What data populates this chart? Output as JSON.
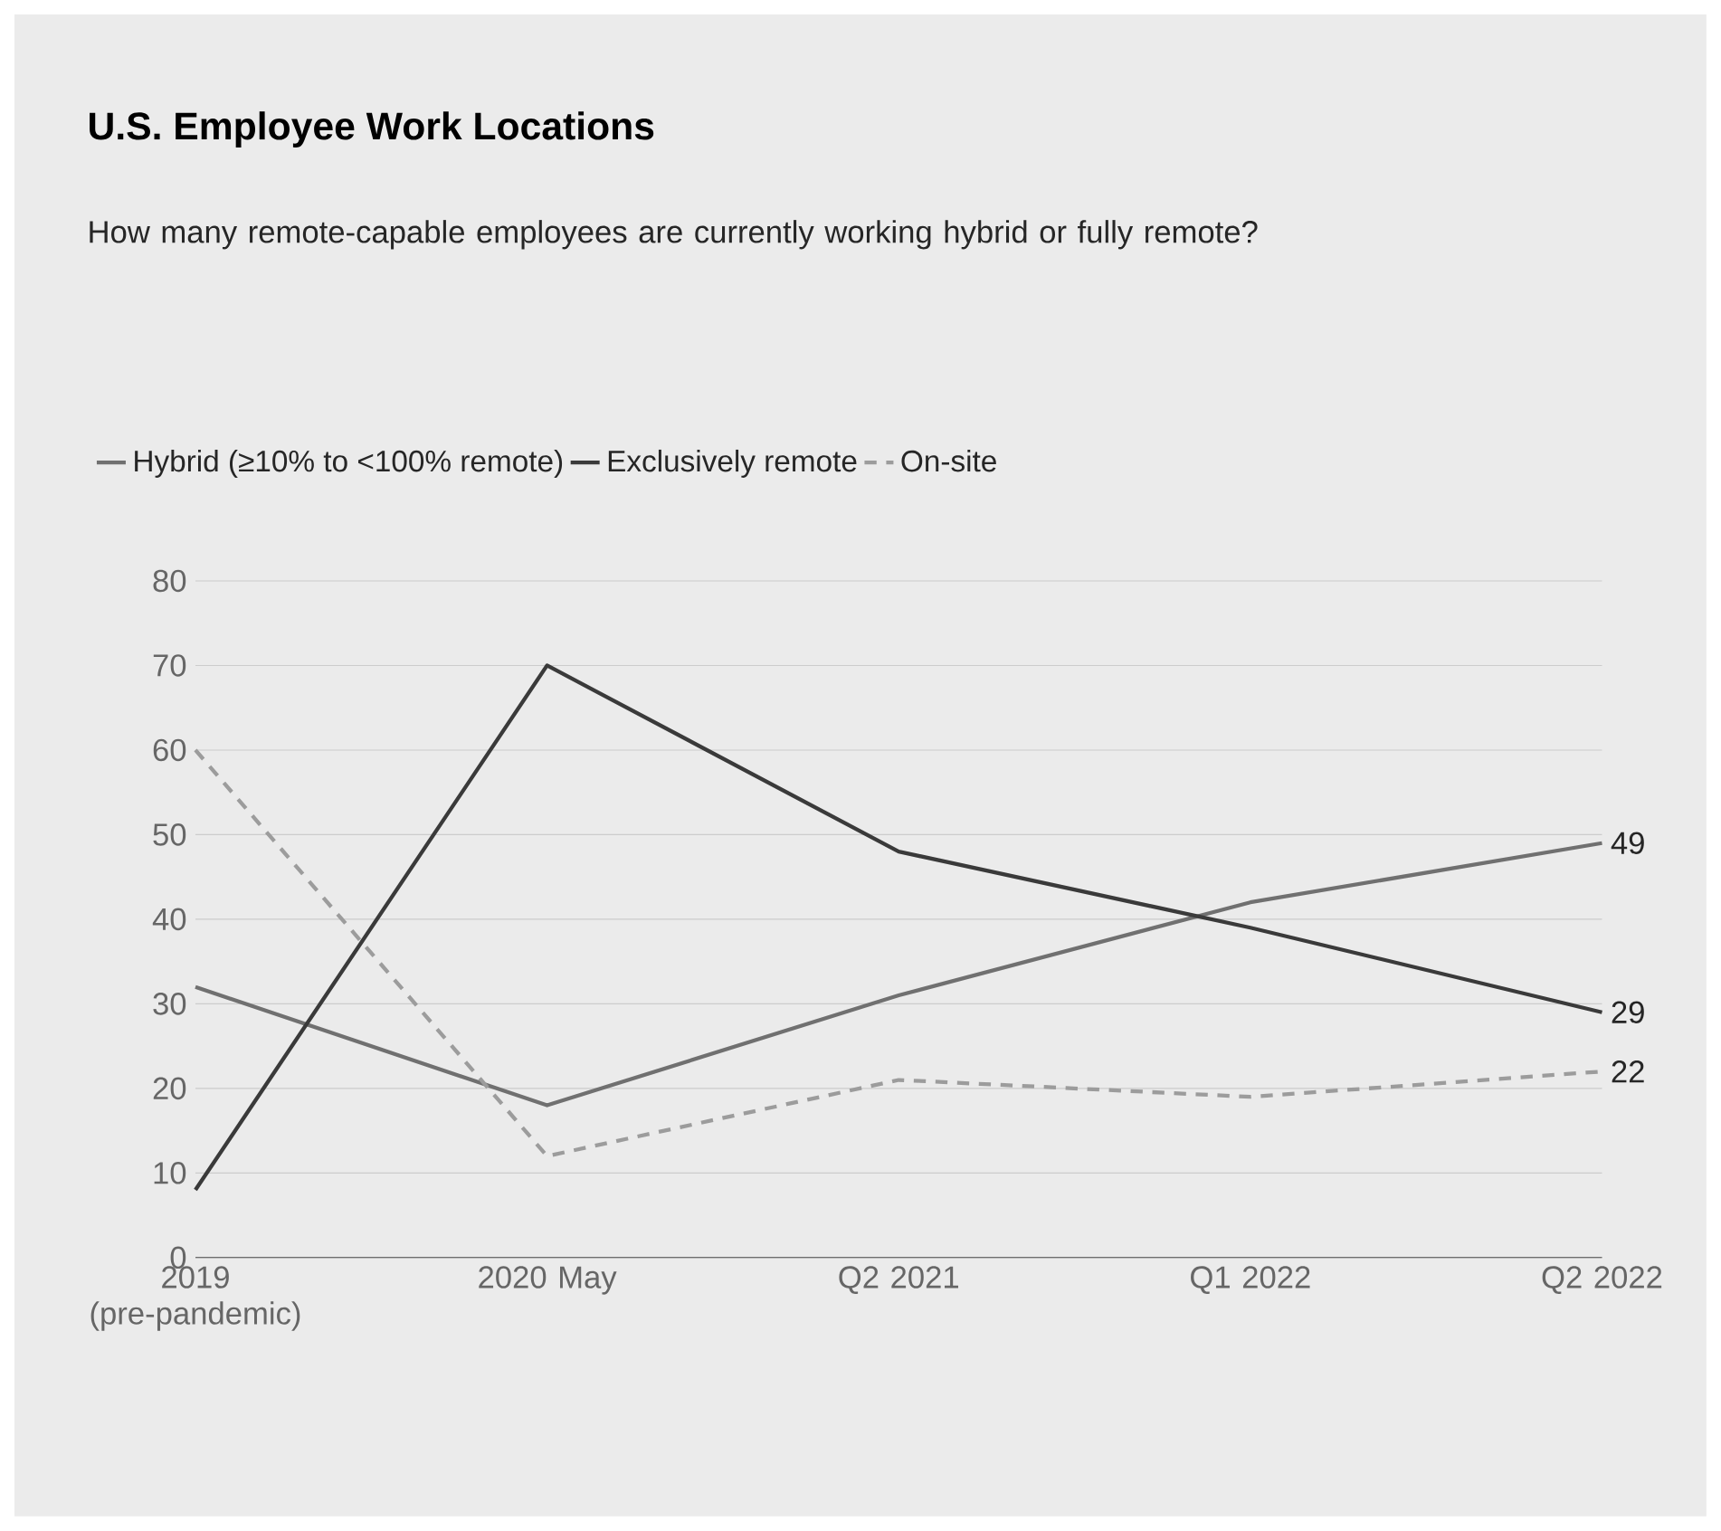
{
  "chart_data": {
    "type": "line",
    "title": "U.S. Employee Work Locations",
    "subtitle": "How many remote-capable employees are currently working hybrid or fully remote?",
    "categories": [
      "2019 (pre-pandemic)",
      "2020 May",
      "Q2 2021",
      "Q1 2022",
      "Q2 2022"
    ],
    "series": [
      {
        "name": "Hybrid (≥10% to <100% remote)",
        "color": "#707070",
        "line_style": "solid",
        "values": [
          32,
          18,
          31,
          42,
          49
        ],
        "value_labels": [
          null,
          null,
          null,
          null,
          "49"
        ]
      },
      {
        "name": "Exclusively remote",
        "color": "#3a3a3a",
        "line_style": "solid",
        "values": [
          8,
          70,
          48,
          39,
          29
        ],
        "value_labels": [
          null,
          null,
          null,
          null,
          "29"
        ]
      },
      {
        "name": "On-site",
        "color": "#9c9c9c",
        "line_style": "dashed",
        "values": [
          60,
          12,
          21,
          19,
          22
        ],
        "value_labels": [
          null,
          null,
          null,
          null,
          "22"
        ]
      }
    ],
    "ylim": [
      0,
      80
    ],
    "yticks": [
      0,
      10,
      20,
      30,
      40,
      50,
      60,
      70,
      80
    ],
    "grid": "y",
    "legend": "top left",
    "marker": "none"
  }
}
